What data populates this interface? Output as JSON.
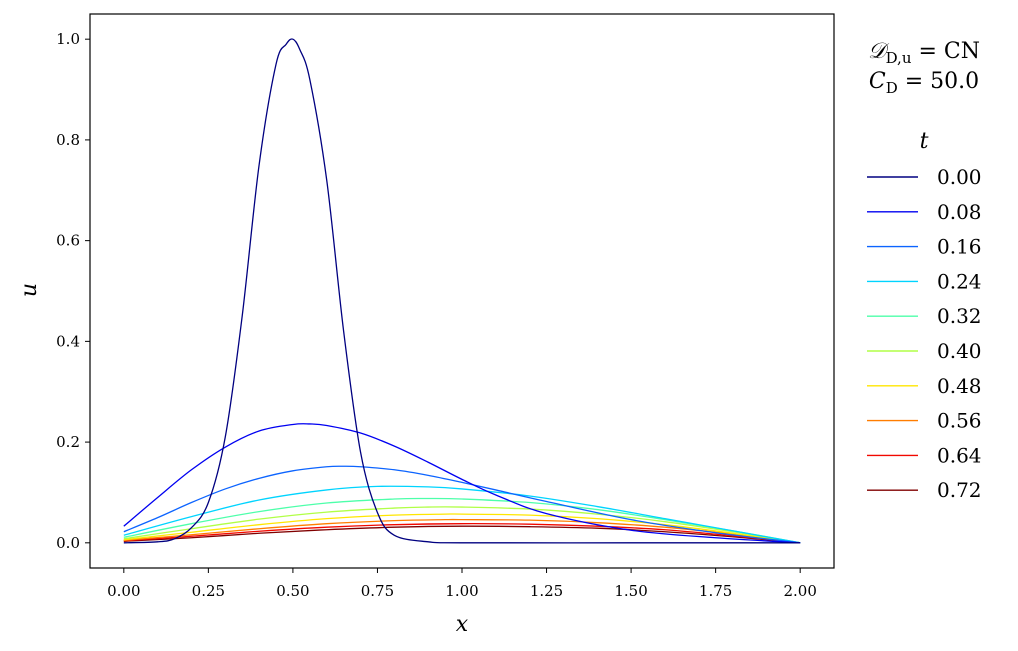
{
  "chart_data": {
    "type": "line",
    "xlabel": "x",
    "ylabel": "u",
    "xlim": [
      -0.1,
      2.1
    ],
    "ylim": [
      -0.05,
      1.05
    ],
    "xticks": [
      "0.00",
      "0.25",
      "0.50",
      "0.75",
      "1.00",
      "1.25",
      "1.50",
      "1.75",
      "2.00"
    ],
    "yticks": [
      "0.0",
      "0.2",
      "0.4",
      "0.6",
      "0.8",
      "1.0"
    ],
    "annotation": {
      "line1_prefix": "𝒟",
      "line1_sub": "D,u",
      "line1_suffix": " = CN",
      "line2_prefix": "C",
      "line2_sub": "D",
      "line2_suffix": " = 50.0"
    },
    "legend": {
      "title": "t",
      "placement": "right, outside"
    },
    "series": [
      {
        "name": "0.00",
        "color": "#000080",
        "x": [
          0.0,
          0.1,
          0.15,
          0.2,
          0.25,
          0.3,
          0.35,
          0.4,
          0.45,
          0.48,
          0.5,
          0.52,
          0.55,
          0.6,
          0.65,
          0.7,
          0.75,
          0.8,
          0.9,
          1.0,
          1.5,
          2.0
        ],
        "y": [
          0.0,
          0.002,
          0.008,
          0.03,
          0.08,
          0.21,
          0.45,
          0.75,
          0.95,
          0.99,
          1.0,
          0.98,
          0.92,
          0.72,
          0.42,
          0.18,
          0.06,
          0.015,
          0.002,
          0.0,
          0.0,
          0.0
        ]
      },
      {
        "name": "0.08",
        "color": "#0000f1",
        "x": [
          0.0,
          0.1,
          0.2,
          0.3,
          0.4,
          0.5,
          0.55,
          0.6,
          0.7,
          0.8,
          0.9,
          1.0,
          1.1,
          1.25,
          1.5,
          1.75,
          2.0
        ],
        "y": [
          0.033,
          0.09,
          0.145,
          0.19,
          0.222,
          0.235,
          0.236,
          0.233,
          0.218,
          0.192,
          0.16,
          0.126,
          0.095,
          0.058,
          0.025,
          0.01,
          0.0
        ]
      },
      {
        "name": "0.16",
        "color": "#0c64ff",
        "x": [
          0.0,
          0.1,
          0.2,
          0.3,
          0.4,
          0.5,
          0.6,
          0.65,
          0.7,
          0.8,
          0.9,
          1.0,
          1.1,
          1.25,
          1.5,
          1.75,
          2.0
        ],
        "y": [
          0.022,
          0.05,
          0.08,
          0.107,
          0.128,
          0.143,
          0.151,
          0.152,
          0.151,
          0.145,
          0.134,
          0.12,
          0.105,
          0.082,
          0.046,
          0.02,
          0.0
        ]
      },
      {
        "name": "0.24",
        "color": "#00d4ff",
        "x": [
          0.0,
          0.2,
          0.4,
          0.6,
          0.75,
          0.9,
          1.0,
          1.2,
          1.4,
          1.6,
          1.8,
          2.0
        ],
        "y": [
          0.015,
          0.052,
          0.085,
          0.105,
          0.112,
          0.111,
          0.107,
          0.093,
          0.072,
          0.048,
          0.024,
          0.0
        ]
      },
      {
        "name": "0.32",
        "color": "#4dffaa",
        "x": [
          0.0,
          0.2,
          0.4,
          0.6,
          0.8,
          0.9,
          1.0,
          1.2,
          1.4,
          1.6,
          1.8,
          2.0
        ],
        "y": [
          0.011,
          0.038,
          0.062,
          0.079,
          0.087,
          0.088,
          0.087,
          0.08,
          0.066,
          0.046,
          0.024,
          0.0
        ]
      },
      {
        "name": "0.40",
        "color": "#b1ff46",
        "x": [
          0.0,
          0.2,
          0.4,
          0.6,
          0.8,
          0.9,
          1.0,
          1.2,
          1.4,
          1.6,
          1.8,
          2.0
        ],
        "y": [
          0.008,
          0.028,
          0.047,
          0.061,
          0.069,
          0.071,
          0.071,
          0.067,
          0.057,
          0.042,
          0.022,
          0.0
        ]
      },
      {
        "name": "0.48",
        "color": "#ffe600",
        "x": [
          0.0,
          0.2,
          0.4,
          0.6,
          0.8,
          0.95,
          1.0,
          1.2,
          1.4,
          1.6,
          1.8,
          2.0
        ],
        "y": [
          0.006,
          0.021,
          0.036,
          0.048,
          0.055,
          0.057,
          0.057,
          0.055,
          0.048,
          0.036,
          0.019,
          0.0
        ]
      },
      {
        "name": "0.56",
        "color": "#ff7d00",
        "x": [
          0.0,
          0.2,
          0.4,
          0.6,
          0.8,
          0.95,
          1.0,
          1.2,
          1.4,
          1.6,
          1.8,
          2.0
        ],
        "y": [
          0.005,
          0.016,
          0.028,
          0.038,
          0.044,
          0.046,
          0.046,
          0.045,
          0.04,
          0.031,
          0.017,
          0.0
        ]
      },
      {
        "name": "0.64",
        "color": "#f10800",
        "x": [
          0.0,
          0.2,
          0.4,
          0.6,
          0.8,
          1.0,
          1.2,
          1.4,
          1.6,
          1.8,
          2.0
        ],
        "y": [
          0.004,
          0.013,
          0.023,
          0.031,
          0.036,
          0.038,
          0.037,
          0.033,
          0.026,
          0.014,
          0.0
        ]
      },
      {
        "name": "0.72",
        "color": "#800000",
        "x": [
          0.0,
          0.2,
          0.4,
          0.6,
          0.8,
          1.0,
          1.2,
          1.4,
          1.6,
          1.8,
          2.0
        ],
        "y": [
          0.003,
          0.01,
          0.019,
          0.026,
          0.031,
          0.033,
          0.032,
          0.029,
          0.022,
          0.012,
          0.0
        ]
      }
    ]
  }
}
